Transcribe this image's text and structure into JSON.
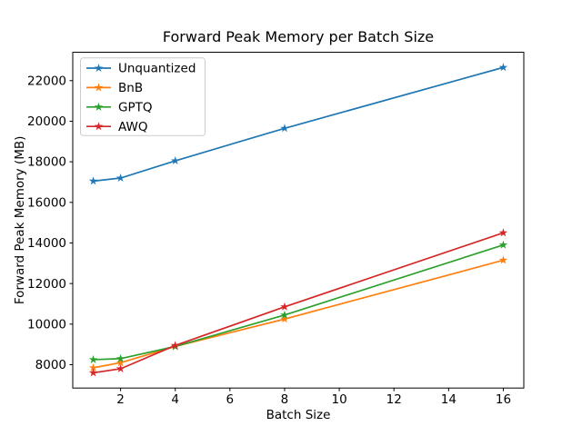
{
  "chart_data": {
    "type": "line",
    "title": "Forward Peak Memory per Batch Size",
    "xlabel": "Batch Size",
    "ylabel": "Forward Peak Memory (MB)",
    "x": [
      1,
      2,
      4,
      8,
      16
    ],
    "series": [
      {
        "name": "Unquantized",
        "color": "#1f77b4",
        "marker": "star",
        "values": [
          17050,
          17200,
          18050,
          19650,
          22650
        ]
      },
      {
        "name": "BnB",
        "color": "#ff7f0e",
        "marker": "star",
        "values": [
          7850,
          8100,
          8900,
          10250,
          13150
        ]
      },
      {
        "name": "GPTQ",
        "color": "#2ca02c",
        "marker": "star",
        "values": [
          8250,
          8300,
          8900,
          10450,
          13900
        ]
      },
      {
        "name": "AWQ",
        "color": "#d62728",
        "marker": "star",
        "values": [
          7600,
          7800,
          8950,
          10850,
          14500
        ]
      }
    ],
    "x_ticks": [
      2,
      4,
      6,
      8,
      10,
      12,
      14,
      16
    ],
    "y_ticks": [
      8000,
      10000,
      12000,
      14000,
      16000,
      18000,
      20000,
      22000
    ],
    "xlim": [
      0.25,
      16.75
    ],
    "ylim": [
      6850,
      23400
    ],
    "grid": false,
    "legend_position": "upper left",
    "spine_color": "#000000",
    "legend_border_color": "#cccccc",
    "background_color": "#ffffff"
  }
}
